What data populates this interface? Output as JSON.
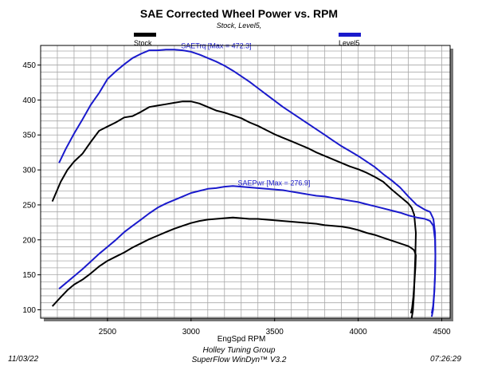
{
  "chart_data": {
    "type": "line",
    "title": "SAE Corrected Wheel Power vs. RPM",
    "subtitle": "Stock, Level5,",
    "xlabel": "EngSpd RPM",
    "ylabel": "",
    "xlim": [
      2100,
      4550
    ],
    "ylim": [
      88,
      478
    ],
    "xticks": [
      2500,
      3000,
      3500,
      4000,
      4500
    ],
    "yticks": [
      100,
      150,
      200,
      250,
      300,
      350,
      400,
      450
    ],
    "grid": true,
    "legend": [
      {
        "name": "Stock",
        "color": "#000000"
      },
      {
        "name": "Level5",
        "color": "#1a1acc"
      }
    ],
    "annotations": [
      {
        "text": "SAETrq [Max = 472.3]",
        "color": "#1a1acc",
        "x": 2940,
        "y": 474
      },
      {
        "text": "SAEPwr [Max = 276.9]",
        "color": "#1a1acc",
        "x": 3280,
        "y": 278
      }
    ],
    "series": [
      {
        "name": "Stock",
        "kind": "torque",
        "color": "#000000",
        "points": [
          [
            2170,
            255
          ],
          [
            2220,
            283
          ],
          [
            2260,
            300
          ],
          [
            2300,
            312
          ],
          [
            2350,
            323
          ],
          [
            2400,
            340
          ],
          [
            2450,
            356
          ],
          [
            2500,
            362
          ],
          [
            2550,
            368
          ],
          [
            2600,
            375
          ],
          [
            2650,
            377
          ],
          [
            2700,
            383
          ],
          [
            2750,
            390
          ],
          [
            2800,
            392
          ],
          [
            2850,
            394
          ],
          [
            2900,
            396
          ],
          [
            2950,
            398
          ],
          [
            3000,
            398
          ],
          [
            3050,
            395
          ],
          [
            3100,
            390
          ],
          [
            3150,
            385
          ],
          [
            3200,
            382
          ],
          [
            3250,
            378
          ],
          [
            3300,
            374
          ],
          [
            3350,
            368
          ],
          [
            3400,
            363
          ],
          [
            3450,
            357
          ],
          [
            3500,
            351
          ],
          [
            3550,
            346
          ],
          [
            3600,
            341
          ],
          [
            3650,
            336
          ],
          [
            3700,
            331
          ],
          [
            3750,
            325
          ],
          [
            3800,
            320
          ],
          [
            3850,
            315
          ],
          [
            3900,
            310
          ],
          [
            3950,
            305
          ],
          [
            4000,
            301
          ],
          [
            4050,
            296
          ],
          [
            4100,
            290
          ],
          [
            4150,
            283
          ],
          [
            4200,
            272
          ],
          [
            4250,
            262
          ],
          [
            4300,
            252
          ],
          [
            4320,
            246
          ],
          [
            4335,
            236
          ],
          [
            4345,
            210
          ],
          [
            4342,
            180
          ],
          [
            4338,
            150
          ],
          [
            4333,
            120
          ],
          [
            4327,
            98
          ],
          [
            4320,
            88
          ]
        ]
      },
      {
        "name": "Stock",
        "kind": "power",
        "color": "#000000",
        "points": [
          [
            2170,
            105
          ],
          [
            2220,
            118
          ],
          [
            2260,
            128
          ],
          [
            2300,
            136
          ],
          [
            2350,
            143
          ],
          [
            2400,
            152
          ],
          [
            2450,
            162
          ],
          [
            2500,
            170
          ],
          [
            2550,
            176
          ],
          [
            2600,
            182
          ],
          [
            2650,
            189
          ],
          [
            2700,
            195
          ],
          [
            2750,
            201
          ],
          [
            2800,
            206
          ],
          [
            2850,
            211
          ],
          [
            2900,
            216
          ],
          [
            2950,
            220
          ],
          [
            3000,
            224
          ],
          [
            3050,
            227
          ],
          [
            3100,
            229
          ],
          [
            3150,
            230
          ],
          [
            3200,
            231
          ],
          [
            3250,
            232
          ],
          [
            3300,
            231
          ],
          [
            3350,
            230
          ],
          [
            3400,
            230
          ],
          [
            3450,
            229
          ],
          [
            3500,
            228
          ],
          [
            3550,
            227
          ],
          [
            3600,
            226
          ],
          [
            3650,
            225
          ],
          [
            3700,
            224
          ],
          [
            3750,
            223
          ],
          [
            3800,
            221
          ],
          [
            3850,
            220
          ],
          [
            3900,
            219
          ],
          [
            3950,
            217
          ],
          [
            4000,
            214
          ],
          [
            4050,
            210
          ],
          [
            4100,
            207
          ],
          [
            4150,
            203
          ],
          [
            4200,
            199
          ],
          [
            4250,
            195
          ],
          [
            4300,
            191
          ],
          [
            4320,
            188
          ],
          [
            4335,
            185
          ],
          [
            4345,
            178
          ],
          [
            4342,
            160
          ],
          [
            4336,
            138
          ],
          [
            4330,
            118
          ],
          [
            4322,
            102
          ],
          [
            4315,
            95
          ]
        ]
      },
      {
        "name": "Level5",
        "kind": "torque",
        "color": "#1a1acc",
        "points": [
          [
            2210,
            310
          ],
          [
            2250,
            330
          ],
          [
            2300,
            352
          ],
          [
            2350,
            372
          ],
          [
            2400,
            393
          ],
          [
            2450,
            410
          ],
          [
            2500,
            430
          ],
          [
            2550,
            441
          ],
          [
            2600,
            451
          ],
          [
            2650,
            460
          ],
          [
            2700,
            466
          ],
          [
            2750,
            471
          ],
          [
            2800,
            471
          ],
          [
            2850,
            472
          ],
          [
            2900,
            472
          ],
          [
            2950,
            471
          ],
          [
            3000,
            469
          ],
          [
            3050,
            465
          ],
          [
            3100,
            460
          ],
          [
            3150,
            455
          ],
          [
            3200,
            449
          ],
          [
            3250,
            442
          ],
          [
            3300,
            434
          ],
          [
            3350,
            426
          ],
          [
            3400,
            417
          ],
          [
            3450,
            408
          ],
          [
            3500,
            399
          ],
          [
            3550,
            390
          ],
          [
            3600,
            382
          ],
          [
            3650,
            374
          ],
          [
            3700,
            366
          ],
          [
            3750,
            358
          ],
          [
            3800,
            350
          ],
          [
            3850,
            342
          ],
          [
            3900,
            334
          ],
          [
            3950,
            327
          ],
          [
            4000,
            320
          ],
          [
            4050,
            312
          ],
          [
            4100,
            304
          ],
          [
            4150,
            294
          ],
          [
            4200,
            285
          ],
          [
            4250,
            275
          ],
          [
            4300,
            262
          ],
          [
            4350,
            250
          ],
          [
            4400,
            243
          ],
          [
            4430,
            240
          ],
          [
            4450,
            230
          ],
          [
            4460,
            210
          ],
          [
            4462,
            180
          ],
          [
            4460,
            150
          ],
          [
            4455,
            125
          ],
          [
            4448,
            100
          ],
          [
            4440,
            90
          ]
        ]
      },
      {
        "name": "Level5",
        "kind": "power",
        "color": "#1a1acc",
        "points": [
          [
            2210,
            130
          ],
          [
            2250,
            138
          ],
          [
            2300,
            148
          ],
          [
            2350,
            158
          ],
          [
            2400,
            169
          ],
          [
            2450,
            180
          ],
          [
            2500,
            190
          ],
          [
            2550,
            200
          ],
          [
            2600,
            211
          ],
          [
            2650,
            220
          ],
          [
            2700,
            229
          ],
          [
            2750,
            238
          ],
          [
            2800,
            246
          ],
          [
            2850,
            252
          ],
          [
            2900,
            257
          ],
          [
            2950,
            262
          ],
          [
            3000,
            267
          ],
          [
            3050,
            270
          ],
          [
            3100,
            273
          ],
          [
            3150,
            274
          ],
          [
            3200,
            276
          ],
          [
            3250,
            277
          ],
          [
            3300,
            276
          ],
          [
            3350,
            275
          ],
          [
            3400,
            274
          ],
          [
            3450,
            273
          ],
          [
            3500,
            272
          ],
          [
            3550,
            271
          ],
          [
            3600,
            269
          ],
          [
            3650,
            267
          ],
          [
            3700,
            265
          ],
          [
            3750,
            263
          ],
          [
            3800,
            262
          ],
          [
            3850,
            260
          ],
          [
            3900,
            258
          ],
          [
            3950,
            256
          ],
          [
            4000,
            254
          ],
          [
            4050,
            251
          ],
          [
            4100,
            248
          ],
          [
            4150,
            245
          ],
          [
            4200,
            242
          ],
          [
            4250,
            239
          ],
          [
            4300,
            235
          ],
          [
            4350,
            232
          ],
          [
            4400,
            230
          ],
          [
            4430,
            227
          ],
          [
            4450,
            220
          ],
          [
            4460,
            200
          ],
          [
            4462,
            175
          ],
          [
            4460,
            150
          ],
          [
            4455,
            125
          ],
          [
            4448,
            105
          ],
          [
            4440,
            95
          ]
        ]
      }
    ]
  },
  "footer": {
    "date": "11/03/22",
    "company": "Holley Tuning Group",
    "software": "SuperFlow WinDyn™ V3.2",
    "time": "07:26:29"
  }
}
